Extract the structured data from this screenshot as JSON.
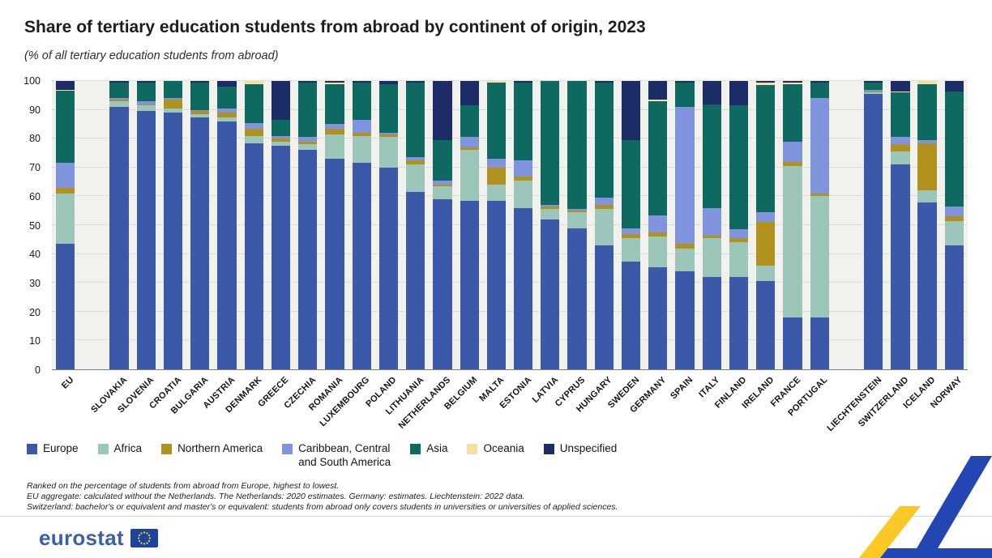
{
  "title": "Share of tertiary education students from abroad by continent of origin, 2023",
  "subtitle": "(% of all tertiary education students from abroad)",
  "chart_data": {
    "type": "bar",
    "stacked": true,
    "title": "Share of tertiary education students from abroad by continent of origin, 2023",
    "ylabel": "% of all tertiary education students from abroad",
    "ylim": [
      0,
      100
    ],
    "yticks": [
      0,
      10,
      20,
      30,
      40,
      50,
      60,
      70,
      80,
      90,
      100
    ],
    "grid": true,
    "legend_position": "bottom",
    "series_names": [
      "Europe",
      "Africa",
      "Northern America",
      "Caribbean, Central and South America",
      "Asia",
      "Oceania",
      "Unspecified"
    ],
    "legend_display": [
      "Europe",
      "Africa",
      "Northern America",
      "Caribbean, Central\nand South America",
      "Asia",
      "Oceania",
      "Unspecified"
    ],
    "series_colors": [
      "#3B58A9",
      "#9DC6BA",
      "#B2921E",
      "#8093DD",
      "#0E6A60",
      "#F6DFA2",
      "#1C2C66"
    ],
    "countries": [
      {
        "name": "EU",
        "group": "aggregate",
        "values": [
          43.5,
          17.5,
          2,
          8.5,
          25,
          0.5,
          3
        ]
      },
      {
        "name": "SLOVAKIA",
        "group": "eu",
        "values": [
          91,
          2,
          0.5,
          0.5,
          5.5,
          0,
          0.5
        ]
      },
      {
        "name": "SLOVENIA",
        "group": "eu",
        "values": [
          89.5,
          2,
          0.5,
          1,
          6.5,
          0,
          0.5
        ]
      },
      {
        "name": "CROATIA",
        "group": "eu",
        "values": [
          89,
          1.5,
          3,
          0.5,
          6,
          0,
          0
        ]
      },
      {
        "name": "BULGARIA",
        "group": "eu",
        "values": [
          87.5,
          1,
          1,
          0.5,
          9.5,
          0,
          0.5
        ]
      },
      {
        "name": "AUSTRIA",
        "group": "eu",
        "values": [
          86,
          1.5,
          1.5,
          1.5,
          7.5,
          0,
          2
        ]
      },
      {
        "name": "DENMARK",
        "group": "eu",
        "values": [
          78.5,
          2.5,
          2.5,
          2,
          13.5,
          1,
          0
        ]
      },
      {
        "name": "GREECE",
        "group": "eu",
        "values": [
          77.5,
          1.5,
          1,
          1,
          5.5,
          0,
          13.5
        ]
      },
      {
        "name": "CZECHIA",
        "group": "eu",
        "values": [
          76,
          2,
          1,
          1.5,
          19,
          0,
          0.5
        ]
      },
      {
        "name": "ROMANIA",
        "group": "eu",
        "values": [
          73,
          8.5,
          2,
          1.5,
          14,
          0.5,
          0.5
        ]
      },
      {
        "name": "LUXEMBOURG",
        "group": "eu",
        "values": [
          71.5,
          9.5,
          1,
          4.5,
          13,
          0,
          0.5
        ]
      },
      {
        "name": "POLAND",
        "group": "eu",
        "values": [
          70,
          10.5,
          1,
          0.5,
          17,
          0,
          1
        ]
      },
      {
        "name": "LITHUANIA",
        "group": "eu",
        "values": [
          61.5,
          9.5,
          1.5,
          1,
          26,
          0,
          0.5
        ]
      },
      {
        "name": "NETHERLANDS",
        "group": "eu",
        "values": [
          59,
          4.5,
          0.5,
          1.5,
          14,
          0,
          20.5
        ]
      },
      {
        "name": "BELGIUM",
        "group": "eu",
        "values": [
          58.5,
          17.5,
          1,
          3.5,
          11,
          0,
          8.5
        ]
      },
      {
        "name": "MALTA",
        "group": "eu",
        "values": [
          58.5,
          5.5,
          6,
          3,
          26.5,
          0.5,
          0
        ]
      },
      {
        "name": "ESTONIA",
        "group": "eu",
        "values": [
          56,
          9.5,
          1.5,
          5.5,
          27,
          0,
          0.5
        ]
      },
      {
        "name": "LATVIA",
        "group": "eu",
        "values": [
          52,
          3.5,
          1,
          0.5,
          43,
          0,
          0
        ]
      },
      {
        "name": "CYPRUS",
        "group": "eu",
        "values": [
          49,
          5.5,
          0.5,
          0.5,
          44.5,
          0,
          0
        ]
      },
      {
        "name": "HUNGARY",
        "group": "eu",
        "values": [
          43,
          12.5,
          1.5,
          2.5,
          40,
          0,
          0.5
        ]
      },
      {
        "name": "SWEDEN",
        "group": "eu",
        "values": [
          37.5,
          8,
          1.5,
          2,
          30.5,
          0,
          20.5
        ]
      },
      {
        "name": "GERMANY",
        "group": "eu",
        "values": [
          35.5,
          10.5,
          1.5,
          6,
          39.5,
          0.5,
          6.5
        ]
      },
      {
        "name": "SPAIN",
        "group": "eu",
        "values": [
          34,
          8,
          1.5,
          47.5,
          8.5,
          0,
          0.5
        ]
      },
      {
        "name": "ITALY",
        "group": "eu",
        "values": [
          32,
          13.5,
          1,
          9.5,
          36,
          0,
          8
        ]
      },
      {
        "name": "FINLAND",
        "group": "eu",
        "values": [
          32,
          12,
          1.5,
          3,
          43,
          0,
          8.5
        ]
      },
      {
        "name": "IRELAND",
        "group": "eu",
        "values": [
          30.5,
          5.5,
          15,
          3.5,
          44,
          1,
          0.5
        ]
      },
      {
        "name": "FRANCE",
        "group": "eu",
        "values": [
          18,
          52.5,
          1.5,
          7,
          20,
          0.5,
          0.5
        ]
      },
      {
        "name": "PORTUGAL",
        "group": "eu",
        "values": [
          18,
          42,
          1,
          33,
          5.5,
          0,
          0.5
        ]
      },
      {
        "name": "LIECHTENSTEIN",
        "group": "efta",
        "values": [
          95.5,
          0.5,
          0.5,
          0.5,
          2.5,
          0,
          0.5
        ]
      },
      {
        "name": "SWITZERLAND",
        "group": "efta",
        "values": [
          71,
          4.5,
          2.5,
          2.5,
          15.5,
          0.5,
          3.5
        ]
      },
      {
        "name": "ICELAND",
        "group": "efta",
        "values": [
          58,
          4,
          16.5,
          1,
          19.5,
          1,
          0
        ]
      },
      {
        "name": "NORWAY",
        "group": "efta",
        "values": [
          43,
          8.5,
          1.5,
          3.5,
          40,
          0,
          3.5
        ]
      }
    ]
  },
  "footnotes": [
    "Ranked on the percentage of students from abroad from Europe, highest to lowest.",
    "EU aggregate: calculated without the Netherlands. The Netherlands: 2020 estimates. Germany: estimates. Liechtenstein: 2022 data.",
    "Switzerland: bachelor's or equivalent and master's or equivalent: students from abroad only covers students in universities or universities of applied sciences."
  ],
  "footer": {
    "logo_text": "eurostat"
  },
  "colors": {
    "logo_blue": "#3b5fa8",
    "ribbon_blue": "#2346B5",
    "ribbon_yellow": "#FBC926",
    "flag_blue": "#1c43a0",
    "flag_star_yellow": "#ffd617"
  }
}
